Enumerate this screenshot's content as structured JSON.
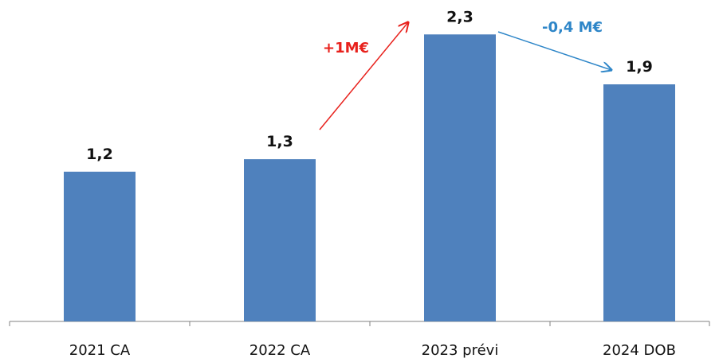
{
  "chart_data": {
    "type": "bar",
    "categories": [
      "2021 CA",
      "2022 CA",
      "2023 prévi",
      "2024 DOB"
    ],
    "values": [
      1.2,
      1.3,
      2.3,
      1.9
    ],
    "value_labels": [
      "1,2",
      "1,3",
      "2,3",
      "1,9"
    ],
    "title": "",
    "xlabel": "",
    "ylabel": "",
    "ylim": [
      0,
      2.7
    ],
    "grid": false,
    "bar_color": "#4F81BD",
    "annotations": [
      {
        "text": "+1M€",
        "from": "2022 CA",
        "to": "2023 prévi",
        "color": "#E8211C"
      },
      {
        "text": "-0,4 M€",
        "from": "2023 prévi",
        "to": "2024 DOB",
        "color": "#2E86C8"
      }
    ]
  }
}
